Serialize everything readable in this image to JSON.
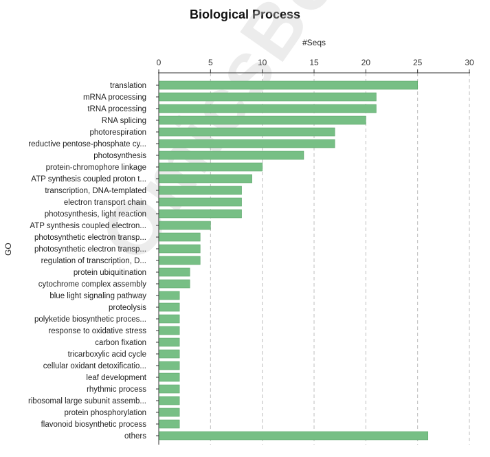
{
  "chart_data": {
    "type": "bar",
    "orientation": "horizontal",
    "title": "Biological Process",
    "xlabel": "#Seqs",
    "ylabel": "GO",
    "xlim": [
      0,
      30
    ],
    "xticks": [
      0,
      5,
      10,
      15,
      20,
      25,
      30
    ],
    "grid": true,
    "bar_color": "#77bf85",
    "bar_edge_color": "#5aa56a",
    "watermark": "OmicsBox",
    "categories": [
      "translation",
      "mRNA processing",
      "tRNA processing",
      "RNA splicing",
      "photorespiration",
      "reductive pentose-phosphate cy...",
      "photosynthesis",
      "protein-chromophore linkage",
      "ATP synthesis coupled proton t...",
      "transcription, DNA-templated",
      "electron transport chain",
      "photosynthesis, light reaction",
      "ATP synthesis coupled electron...",
      "photosynthetic electron transp...",
      "photosynthetic electron transp...",
      "regulation of transcription, D...",
      "protein ubiquitination",
      "cytochrome complex assembly",
      "blue light signaling pathway",
      "proteolysis",
      "polyketide biosynthetic proces...",
      "response to oxidative stress",
      "carbon fixation",
      "tricarboxylic acid cycle",
      "cellular oxidant detoxificatio...",
      "leaf development",
      "rhythmic process",
      "ribosomal large subunit assemb...",
      "protein phosphorylation",
      "flavonoid biosynthetic process",
      "others"
    ],
    "values": [
      25,
      21,
      21,
      20,
      17,
      17,
      14,
      10,
      9,
      8,
      8,
      8,
      5,
      4,
      4,
      4,
      3,
      3,
      2,
      2,
      2,
      2,
      2,
      2,
      2,
      2,
      2,
      2,
      2,
      2,
      26
    ]
  }
}
